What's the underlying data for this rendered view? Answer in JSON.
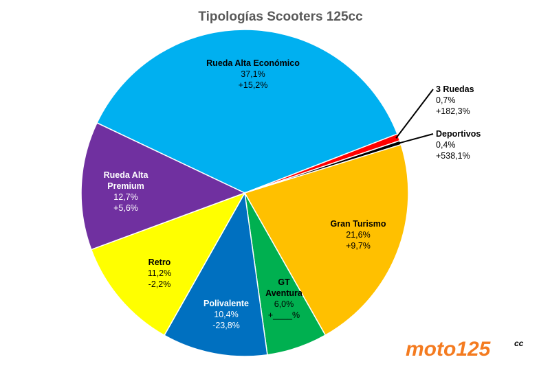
{
  "chart_data": {
    "type": "pie",
    "title": "Tipologías Scooters 125cc",
    "slices": [
      {
        "name": "Rueda Alta Económico",
        "value": 37.1,
        "share_label": "37,1%",
        "change_label": "+15,2%",
        "color": "#00B0F0",
        "text_color": "#000000"
      },
      {
        "name": "3 Ruedas",
        "value": 0.7,
        "share_label": "0,7%",
        "change_label": "+182,3%",
        "color": "#FF0000",
        "text_color": "#000000"
      },
      {
        "name": "Deportivos",
        "value": 0.4,
        "share_label": "0,4%",
        "change_label": "+538,1%",
        "color": "#000000",
        "text_color": "#000000"
      },
      {
        "name": "Gran Turismo",
        "value": 21.6,
        "share_label": "21,6%",
        "change_label": "+9,7%",
        "color": "#FFC000",
        "text_color": "#000000"
      },
      {
        "name": "GT Aventura",
        "value": 6.0,
        "share_label": "6,0%",
        "change_label": "+____%",
        "color": "#00B050",
        "text_color": "#000000"
      },
      {
        "name": "Polivalente",
        "value": 10.4,
        "share_label": "10,4%",
        "change_label": "-23,8%",
        "color": "#0070C0",
        "text_color": "#FFFFFF"
      },
      {
        "name": "Retro",
        "value": 11.2,
        "share_label": "11,2%",
        "change_label": "-2,2%",
        "color": "#FFFF00",
        "text_color": "#000000"
      },
      {
        "name": "Rueda Alta Premium",
        "value": 12.7,
        "share_label": "12,7%",
        "change_label": "+5,6%",
        "color": "#7030A0",
        "text_color": "#FFFFFF"
      }
    ]
  },
  "brand": {
    "logo_text": "moto125",
    "logo_suffix": "cc",
    "logo_color": "#F47B20"
  }
}
